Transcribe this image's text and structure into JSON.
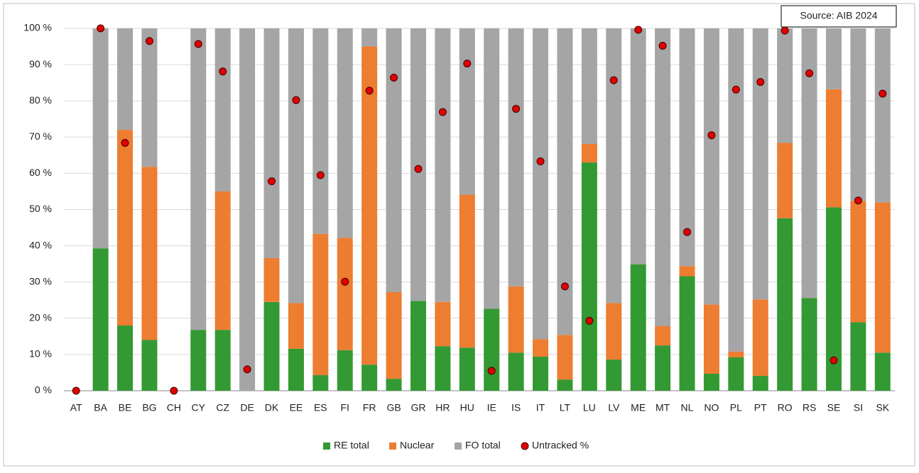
{
  "chart_data": {
    "type": "bar",
    "stacked": true,
    "annotation": "Source: AIB 2024",
    "categories": [
      "AT",
      "BA",
      "BE",
      "BG",
      "CH",
      "CY",
      "CZ",
      "DE",
      "DK",
      "EE",
      "ES",
      "FI",
      "FR",
      "GB",
      "GR",
      "HR",
      "HU",
      "IE",
      "IS",
      "IT",
      "LT",
      "LU",
      "LV",
      "ME",
      "MT",
      "NL",
      "NO",
      "PL",
      "PT",
      "RO",
      "RS",
      "SE",
      "SI",
      "SK"
    ],
    "series": [
      {
        "name": "RE total",
        "color": "#339933",
        "values": [
          0,
          39.3,
          18,
          14,
          0,
          16.8,
          16.8,
          0,
          24.5,
          11.6,
          4.3,
          11.2,
          7.2,
          3.3,
          24.8,
          12.3,
          11.9,
          22.6,
          10.5,
          9.4,
          3.1,
          63,
          8.6,
          34.9,
          12.5,
          31.6,
          4.7,
          9.2,
          4.1,
          47.6,
          25.6,
          50.6,
          18.9,
          10.5
        ]
      },
      {
        "name": "Nuclear",
        "color": "#ed7d31",
        "values": [
          0,
          0,
          54,
          47.8,
          0,
          0,
          38.2,
          0,
          12.1,
          12.6,
          39,
          31,
          87.8,
          23.9,
          0,
          12.2,
          42.2,
          0,
          18.3,
          4.8,
          12.3,
          5.1,
          15.6,
          0,
          5.3,
          2.8,
          19.1,
          1.6,
          21.1,
          20.8,
          0,
          32.6,
          33.5,
          41.5
        ]
      },
      {
        "name": "FO total",
        "color": "#a5a5a5",
        "values": [
          0,
          60.7,
          28,
          38.2,
          0,
          83.2,
          45,
          100,
          63.4,
          75.8,
          56.7,
          57.8,
          5,
          72.8,
          75.2,
          75.5,
          45.9,
          77.4,
          71.2,
          85.8,
          84.6,
          31.9,
          75.8,
          65.1,
          82.2,
          65.6,
          76.2,
          89.2,
          74.8,
          31.6,
          74.4,
          16.8,
          47.6,
          48
        ]
      },
      {
        "name": "Untracked %",
        "color": "#e00000",
        "type": "scatter",
        "values": [
          0,
          100,
          68.4,
          96.5,
          0,
          95.7,
          88.1,
          5.9,
          57.8,
          80.2,
          59.5,
          30.1,
          82.8,
          86.4,
          61.2,
          76.9,
          90.3,
          5.5,
          77.8,
          63.3,
          28.8,
          19.3,
          85.7,
          99.6,
          95.2,
          43.8,
          70.5,
          83.1,
          85.2,
          99.4,
          87.6,
          8.4,
          52.5,
          82
        ]
      }
    ],
    "ylim": [
      0,
      100
    ],
    "yticks": [
      {
        "value": 0,
        "label": "0 %"
      },
      {
        "value": 10,
        "label": "10 %"
      },
      {
        "value": 20,
        "label": "20 %"
      },
      {
        "value": 30,
        "label": "30 %"
      },
      {
        "value": 40,
        "label": "40 %"
      },
      {
        "value": 50,
        "label": "50 %"
      },
      {
        "value": 60,
        "label": "60 %"
      },
      {
        "value": 70,
        "label": "70 %"
      },
      {
        "value": 80,
        "label": "80 %"
      },
      {
        "value": 90,
        "label": "90 %"
      },
      {
        "value": 100,
        "label": "100 %"
      }
    ],
    "grid": true
  }
}
